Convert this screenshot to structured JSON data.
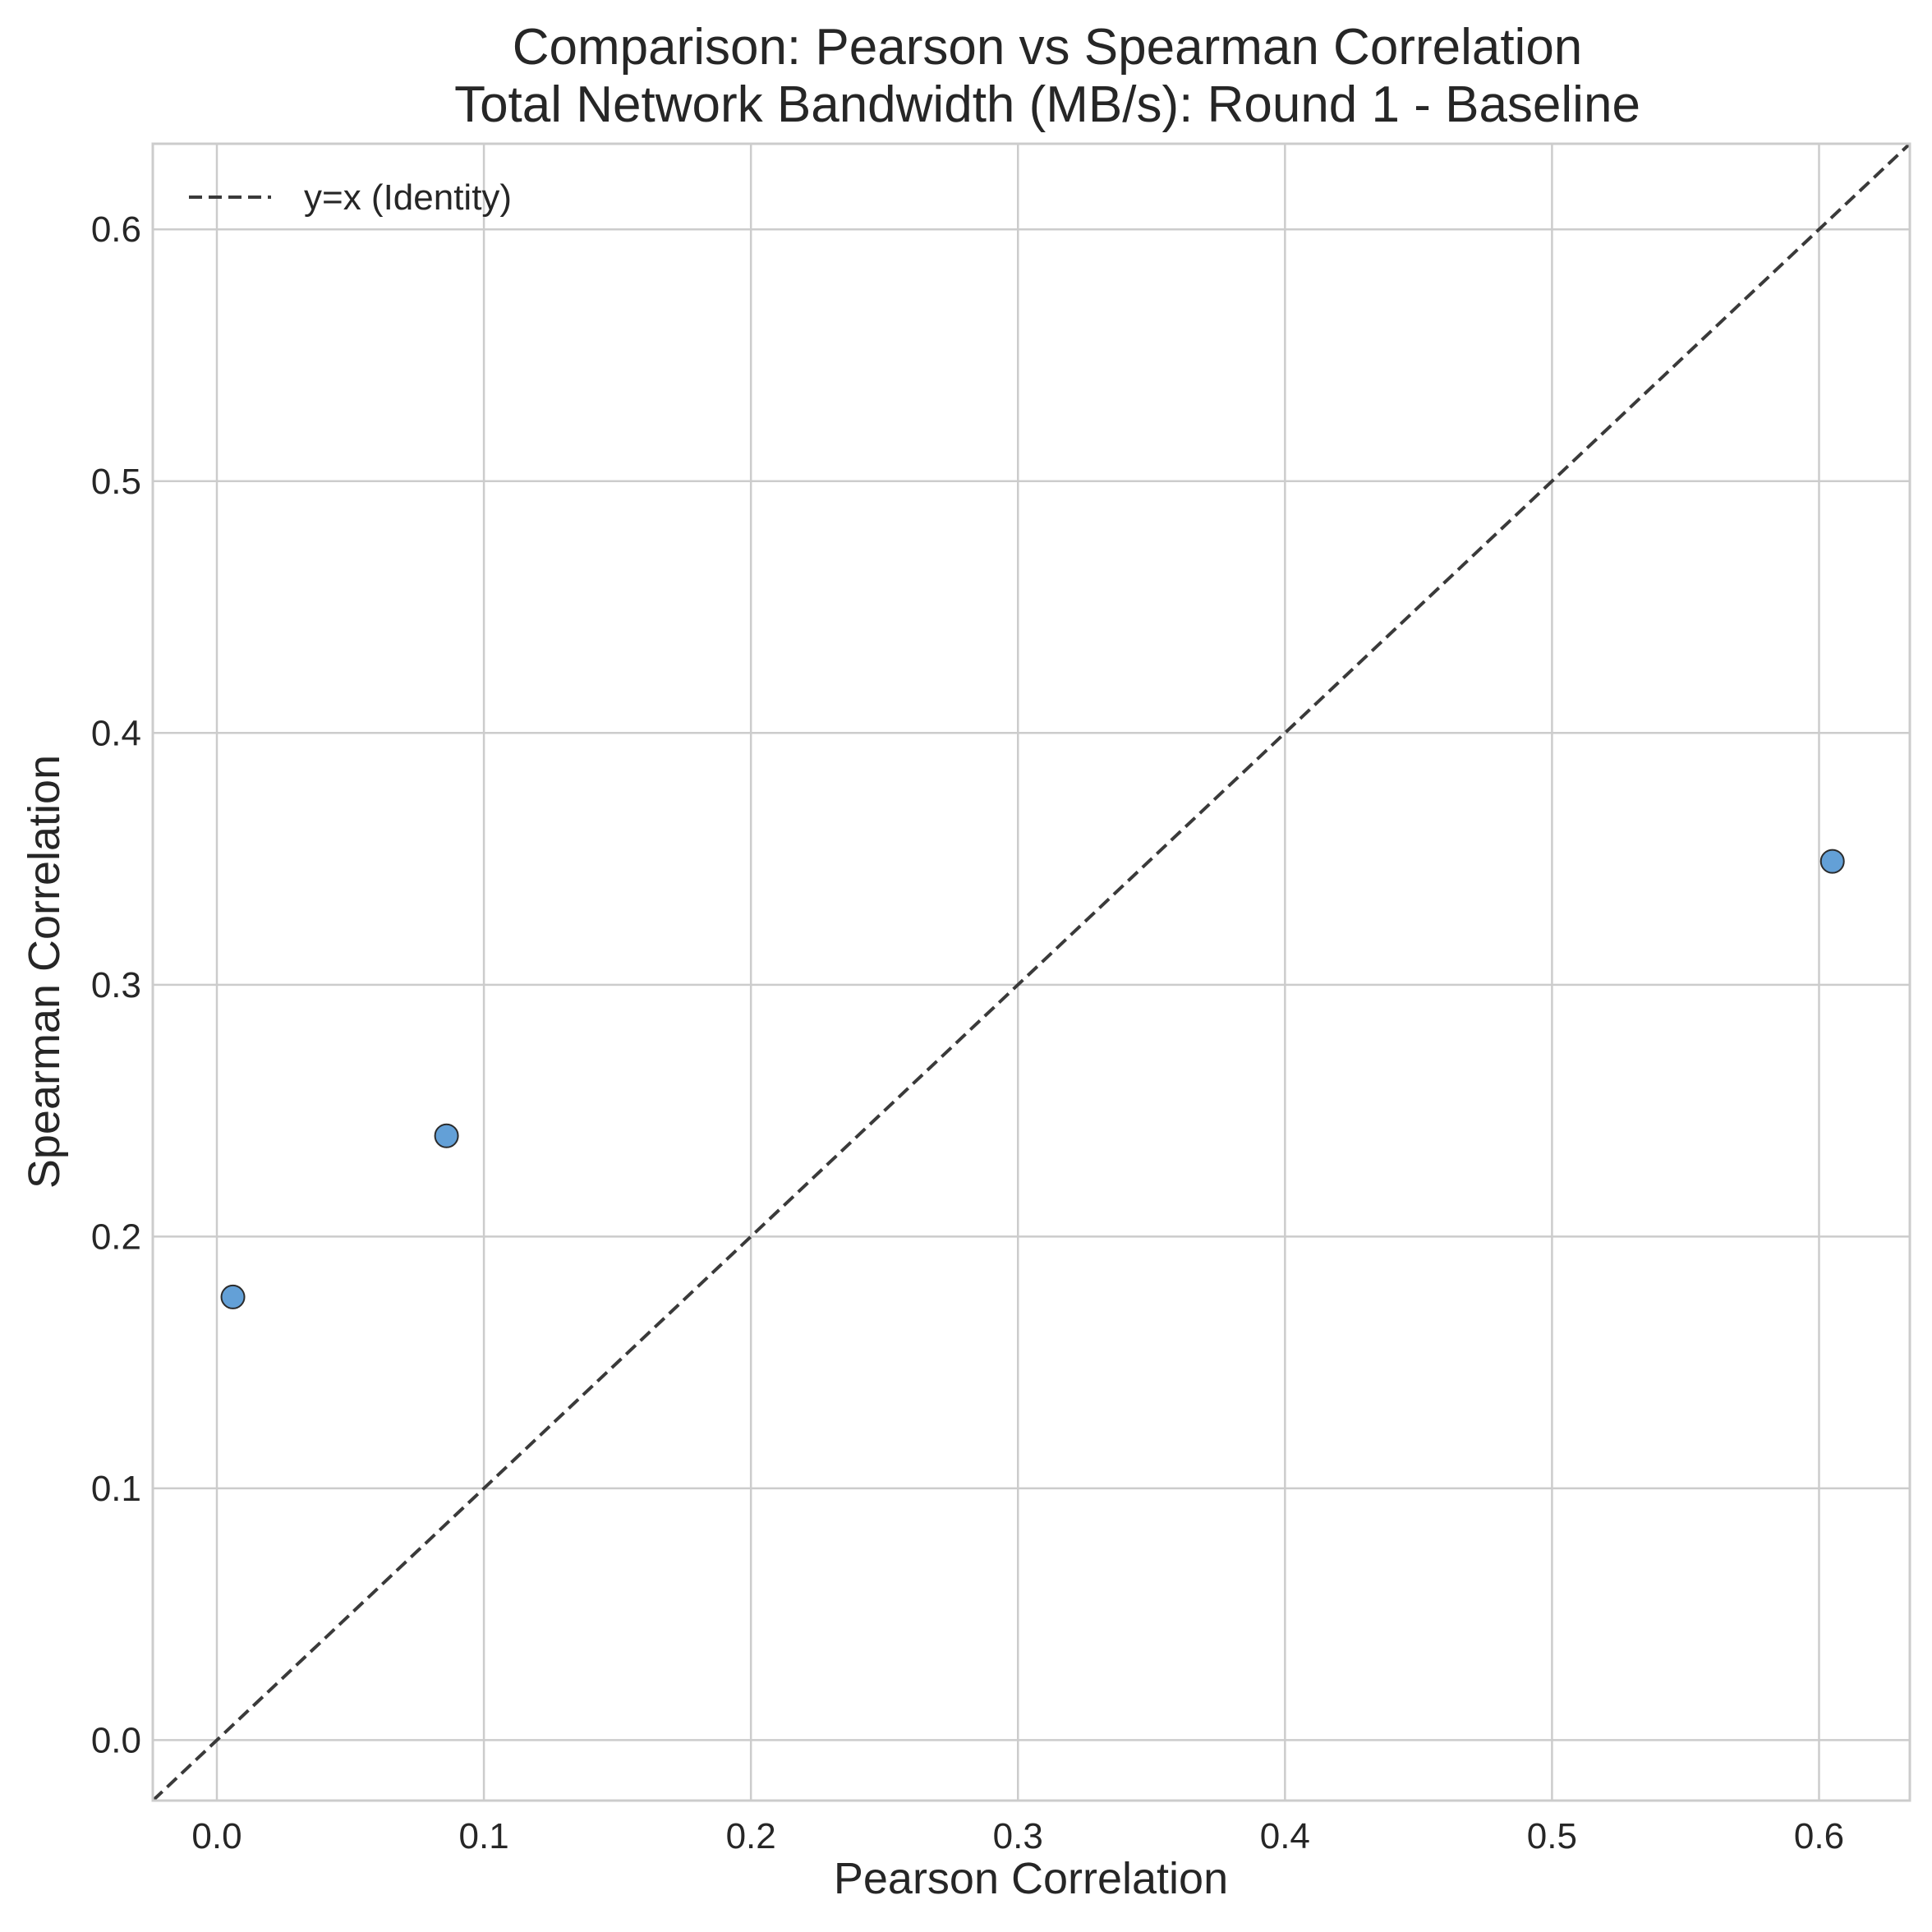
{
  "chart_data": {
    "type": "scatter",
    "title": "Comparison: Pearson vs Spearman Correlation",
    "subtitle": "Total Network Bandwidth (MB/s): Round 1 - Baseline",
    "xlabel": "Pearson Correlation",
    "ylabel": "Spearman Correlation",
    "xlim": [
      -0.024,
      0.634
    ],
    "ylim": [
      -0.024,
      0.634
    ],
    "x_ticks": [
      0.0,
      0.1,
      0.2,
      0.3,
      0.4,
      0.5,
      0.6
    ],
    "y_ticks": [
      0.0,
      0.1,
      0.2,
      0.3,
      0.4,
      0.5,
      0.6
    ],
    "x_tick_labels": [
      "0.0",
      "0.1",
      "0.2",
      "0.3",
      "0.4",
      "0.5",
      "0.6"
    ],
    "y_tick_labels": [
      "0.0",
      "0.1",
      "0.2",
      "0.3",
      "0.4",
      "0.5",
      "0.6"
    ],
    "grid": true,
    "legend_position": "top-left",
    "series": [
      {
        "type": "scatter",
        "color": "#5b9bd5",
        "points": [
          {
            "x": 0.006,
            "y": 0.176
          },
          {
            "x": 0.086,
            "y": 0.24
          },
          {
            "x": 0.605,
            "y": 0.349
          }
        ]
      },
      {
        "type": "line",
        "name": "y=x (Identity)",
        "style": "dashed",
        "color": "#3a3a3a"
      }
    ]
  }
}
